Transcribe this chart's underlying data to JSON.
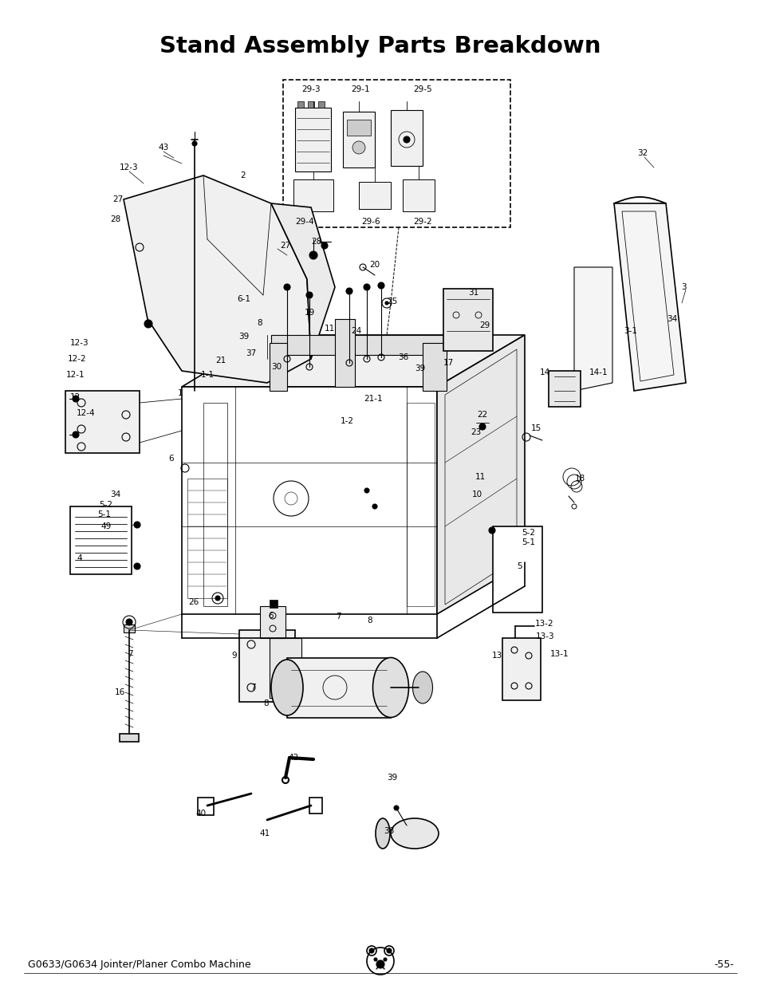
{
  "title": "Stand Assembly Parts Breakdown",
  "footer_left": "G0633/G0634 Jointer/Planer Combo Machine",
  "footer_right": "-55-",
  "bg_color": "#ffffff",
  "title_fontsize": 21,
  "title_fontweight": "bold",
  "footer_fontsize": 9,
  "label_fontsize": 7.5,
  "fig_width": 9.54,
  "fig_height": 12.35,
  "dpi": 100
}
